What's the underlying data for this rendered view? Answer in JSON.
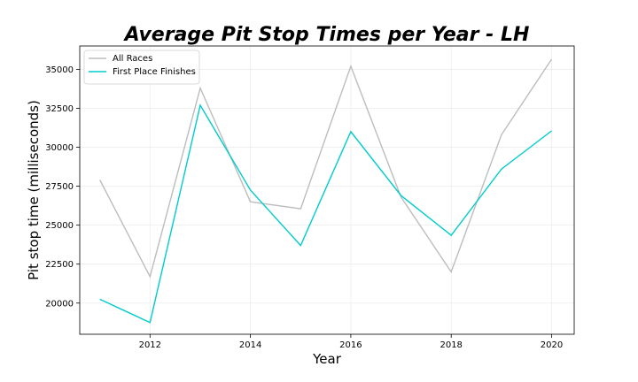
{
  "chart_data": {
    "type": "line",
    "title": "Average Pit Stop Times per Year - LH",
    "xlabel": "Year",
    "ylabel": "Pit stop time (milliseconds)",
    "x": [
      2011,
      2012,
      2013,
      2014,
      2015,
      2016,
      2017,
      2018,
      2019,
      2020
    ],
    "xlim": [
      2010.6,
      2020.45
    ],
    "ylim": [
      18000,
      36500
    ],
    "xticks": [
      "2012",
      "2014",
      "2016",
      "2018",
      "2020"
    ],
    "yticks": [
      "20000",
      "22500",
      "25000",
      "27500",
      "30000",
      "32500",
      "35000"
    ],
    "grid": true,
    "legend_position": "top-left",
    "series": [
      {
        "name": "All Races",
        "color": "#bdbdbd",
        "values": [
          27900,
          21700,
          33800,
          26500,
          26050,
          35200,
          26800,
          22000,
          30800,
          35650
        ]
      },
      {
        "name": "First Place Finishes",
        "color": "#00cccc",
        "values": [
          20250,
          18750,
          32700,
          27250,
          23700,
          31000,
          26900,
          24350,
          28600,
          31050
        ]
      }
    ]
  }
}
